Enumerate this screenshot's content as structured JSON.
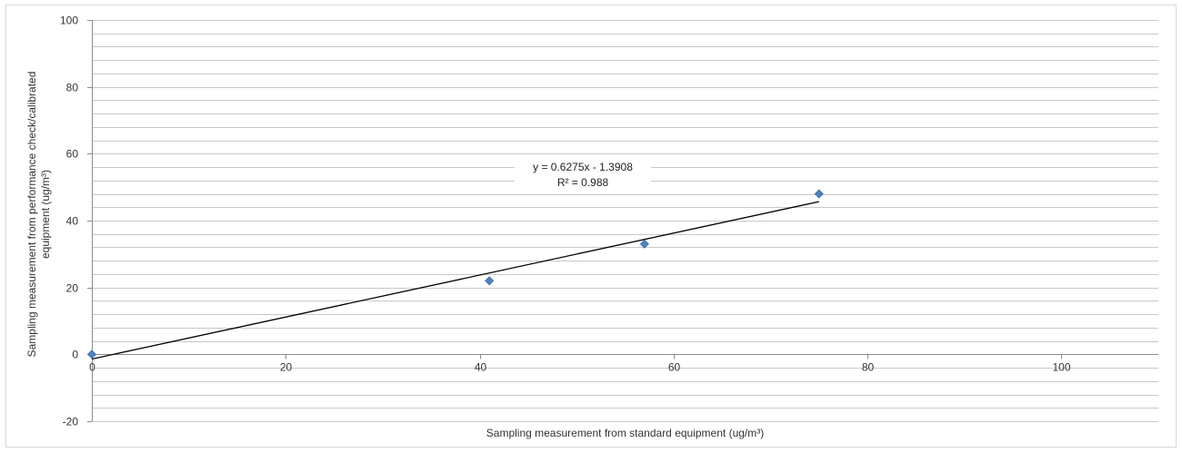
{
  "chart_data": {
    "type": "scatter",
    "title": "",
    "xlabel": "Sampling measurement from standard equipment  (ug/m³)",
    "ylabel_line1": "Sampling measurement from performance check/calibrated",
    "ylabel_line2": "equipment (ug/m³)",
    "xlim": [
      0,
      110
    ],
    "ylim": [
      -20,
      100
    ],
    "x_ticks": [
      0,
      20,
      40,
      60,
      80,
      100
    ],
    "y_ticks": [
      -20,
      0,
      20,
      40,
      60,
      80,
      100
    ],
    "y_minor_step": 4,
    "grid": true,
    "legend": "none",
    "marker_color": "#4f81bd",
    "trend_color": "#000000",
    "points": [
      {
        "x": 0,
        "y": 0
      },
      {
        "x": 41,
        "y": 22
      },
      {
        "x": 57,
        "y": 33
      },
      {
        "x": 75,
        "y": 48
      }
    ],
    "trendline": {
      "slope": 0.6275,
      "intercept": -1.3908,
      "x_range": [
        0,
        75
      ],
      "equation": "y = 0.6275x - 1.3908",
      "r_squared": "R² = 0.988"
    }
  }
}
